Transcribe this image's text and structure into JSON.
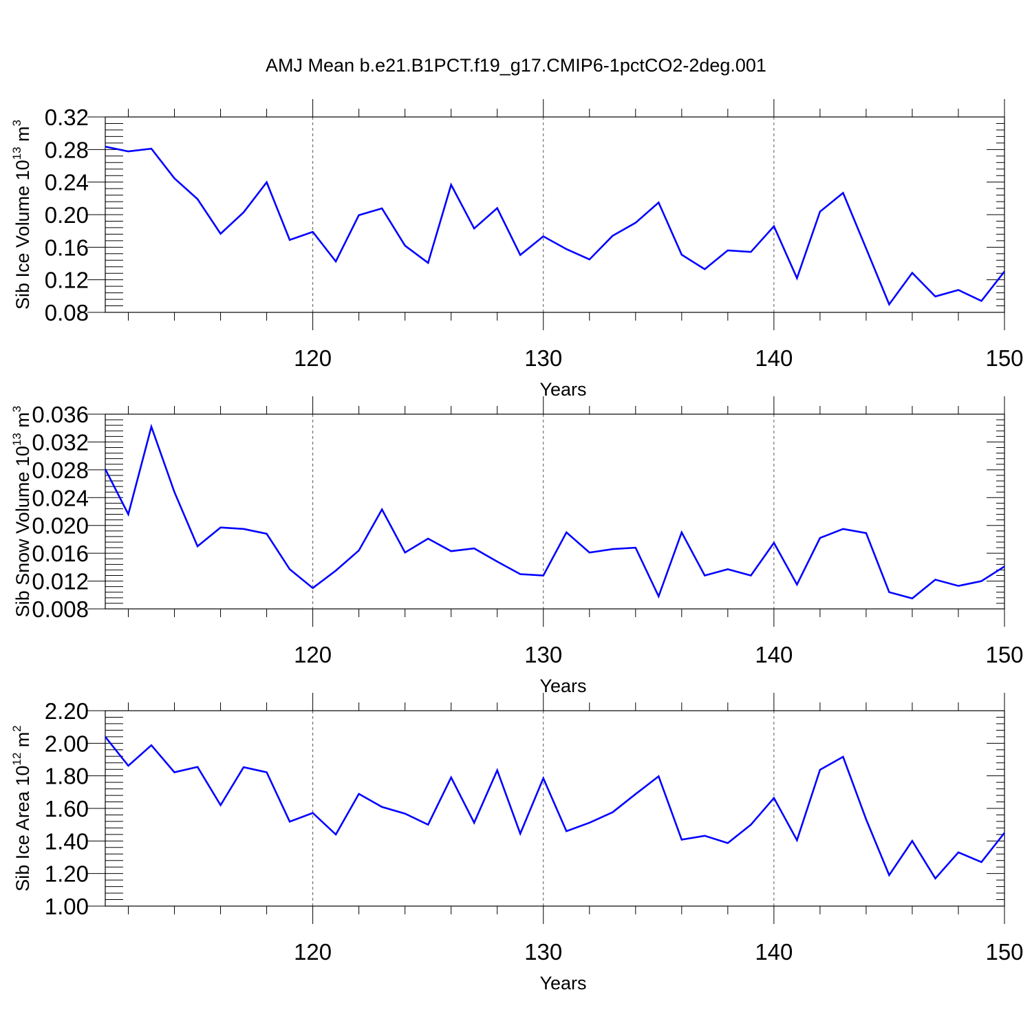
{
  "title": "AMJ Mean b.e21.B1PCT.f19_g17.CMIP6-1pctCO2-2deg.001",
  "chart_data": [
    {
      "type": "line",
      "ylabel": "Sib Ice Volume 10",
      "ylabel_exp": "13",
      "ylabel_unit": " m",
      "ylabel_unit_exp": "3",
      "xlabel": "Years",
      "xlim": [
        111,
        150
      ],
      "ylim": [
        0.08,
        0.32
      ],
      "yticks": [
        0.08,
        0.12,
        0.16,
        0.2,
        0.24,
        0.28,
        0.32
      ],
      "ytick_labels": [
        "0.08",
        "0.12",
        "0.16",
        "0.20",
        "0.24",
        "0.28",
        "0.32"
      ],
      "xticks": [
        120,
        130,
        140,
        150
      ],
      "xtick_labels": [
        "120",
        "130",
        "140",
        "150"
      ],
      "x": [
        111,
        112,
        113,
        114,
        115,
        116,
        117,
        118,
        119,
        120,
        121,
        122,
        123,
        124,
        125,
        126,
        127,
        128,
        129,
        130,
        131,
        132,
        133,
        134,
        135,
        136,
        137,
        138,
        139,
        140,
        141,
        142,
        143,
        144,
        145,
        146,
        147,
        148,
        149,
        150
      ],
      "series": [
        {
          "color": "#0000ff",
          "values": [
            0.2836,
            0.2777,
            0.281,
            0.2446,
            0.2191,
            0.1766,
            0.2029,
            0.2398,
            0.169,
            0.1789,
            0.1425,
            0.1994,
            0.2077,
            0.1619,
            0.1408,
            0.2367,
            0.183,
            0.208,
            0.1505,
            0.1734,
            0.1577,
            0.145,
            0.174,
            0.19,
            0.2149,
            0.1508,
            0.133,
            0.1561,
            0.1542,
            0.1857,
            0.122,
            0.2037,
            0.2267,
            0.1585,
            0.0898,
            0.1285,
            0.0995,
            0.1075,
            0.094,
            0.1302
          ]
        }
      ]
    },
    {
      "type": "line",
      "ylabel": "Sib Snow Volume 10",
      "ylabel_exp": "13",
      "ylabel_unit": " m",
      "ylabel_unit_exp": "3",
      "xlabel": "Years",
      "xlim": [
        111,
        150
      ],
      "ylim": [
        0.008,
        0.036
      ],
      "yticks": [
        0.008,
        0.012,
        0.016,
        0.02,
        0.024,
        0.028,
        0.032,
        0.036
      ],
      "ytick_labels": [
        "0.008",
        "0.012",
        "0.016",
        "0.020",
        "0.024",
        "0.028",
        "0.032",
        "0.036"
      ],
      "xticks": [
        120,
        130,
        140,
        150
      ],
      "xtick_labels": [
        "120",
        "130",
        "140",
        "150"
      ],
      "x": [
        111,
        112,
        113,
        114,
        115,
        116,
        117,
        118,
        119,
        120,
        121,
        122,
        123,
        124,
        125,
        126,
        127,
        128,
        129,
        130,
        131,
        132,
        133,
        134,
        135,
        136,
        137,
        138,
        139,
        140,
        141,
        142,
        143,
        144,
        145,
        146,
        147,
        148,
        149,
        150
      ],
      "series": [
        {
          "color": "#0000ff",
          "values": [
            0.0281,
            0.0216,
            0.0342,
            0.0248,
            0.017,
            0.0197,
            0.0195,
            0.0188,
            0.0137,
            0.011,
            0.0135,
            0.0164,
            0.0223,
            0.0161,
            0.0181,
            0.0163,
            0.0167,
            0.0148,
            0.013,
            0.0128,
            0.019,
            0.0161,
            0.0166,
            0.0168,
            0.0098,
            0.019,
            0.0128,
            0.0137,
            0.0128,
            0.0175,
            0.0115,
            0.0182,
            0.0195,
            0.0189,
            0.0104,
            0.0095,
            0.0122,
            0.0113,
            0.012,
            0.0141
          ]
        }
      ]
    },
    {
      "type": "line",
      "ylabel": "Sib Ice Area 10",
      "ylabel_exp": "12",
      "ylabel_unit": " m",
      "ylabel_unit_exp": "2",
      "xlabel": "Years",
      "xlim": [
        111,
        150
      ],
      "ylim": [
        1.0,
        2.2
      ],
      "yticks": [
        1.0,
        1.2,
        1.4,
        1.6,
        1.8,
        2.0,
        2.2
      ],
      "ytick_labels": [
        "1.00",
        "1.20",
        "1.40",
        "1.60",
        "1.80",
        "2.00",
        "2.20"
      ],
      "xticks": [
        120,
        130,
        140,
        150
      ],
      "xtick_labels": [
        "120",
        "130",
        "140",
        "150"
      ],
      "x": [
        111,
        112,
        113,
        114,
        115,
        116,
        117,
        118,
        119,
        120,
        121,
        122,
        123,
        124,
        125,
        126,
        127,
        128,
        129,
        130,
        131,
        132,
        133,
        134,
        135,
        136,
        137,
        138,
        139,
        140,
        141,
        142,
        143,
        144,
        145,
        146,
        147,
        148,
        149,
        150
      ],
      "series": [
        {
          "color": "#0000ff",
          "values": [
            2.04,
            1.862,
            1.988,
            1.822,
            1.855,
            1.62,
            1.853,
            1.822,
            1.519,
            1.572,
            1.44,
            1.689,
            1.609,
            1.568,
            1.5,
            1.79,
            1.512,
            1.834,
            1.445,
            1.785,
            1.46,
            1.512,
            1.576,
            1.688,
            1.797,
            1.408,
            1.432,
            1.387,
            1.5,
            1.664,
            1.405,
            1.837,
            1.917,
            1.533,
            1.19,
            1.4,
            1.17,
            1.33,
            1.27,
            1.45
          ]
        }
      ]
    }
  ]
}
